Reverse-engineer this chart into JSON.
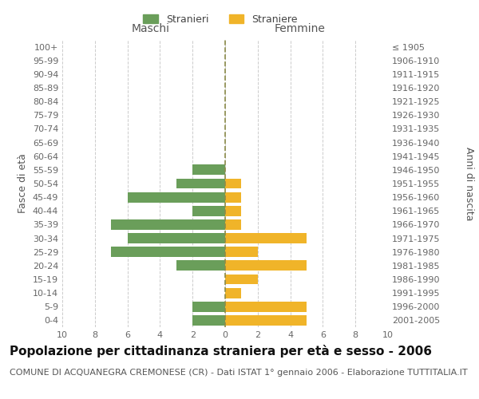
{
  "age_groups": [
    "0-4",
    "5-9",
    "10-14",
    "15-19",
    "20-24",
    "25-29",
    "30-34",
    "35-39",
    "40-44",
    "45-49",
    "50-54",
    "55-59",
    "60-64",
    "65-69",
    "70-74",
    "75-79",
    "80-84",
    "85-89",
    "90-94",
    "95-99",
    "100+"
  ],
  "birth_years": [
    "2001-2005",
    "1996-2000",
    "1991-1995",
    "1986-1990",
    "1981-1985",
    "1976-1980",
    "1971-1975",
    "1966-1970",
    "1961-1965",
    "1956-1960",
    "1951-1955",
    "1946-1950",
    "1941-1945",
    "1936-1940",
    "1931-1935",
    "1926-1930",
    "1921-1925",
    "1916-1920",
    "1911-1915",
    "1906-1910",
    "≤ 1905"
  ],
  "maschi": [
    2,
    2,
    0,
    0,
    3,
    7,
    6,
    7,
    2,
    6,
    3,
    2,
    0,
    0,
    0,
    0,
    0,
    0,
    0,
    0,
    0
  ],
  "femmine": [
    5,
    5,
    1,
    2,
    5,
    2,
    5,
    1,
    1,
    1,
    1,
    0,
    0,
    0,
    0,
    0,
    0,
    0,
    0,
    0,
    0
  ],
  "maschi_color": "#6a9e5a",
  "femmine_color": "#f0b429",
  "center_line_color": "#8b8b4a",
  "background_color": "#ffffff",
  "grid_color": "#cccccc",
  "title": "Popolazione per cittadinanza straniera per età e sesso - 2006",
  "subtitle": "COMUNE DI ACQUANEGRA CREMONESE (CR) - Dati ISTAT 1° gennaio 2006 - Elaborazione TUTTITALIA.IT",
  "xlabel_left": "Maschi",
  "xlabel_right": "Femmine",
  "ylabel_left": "Fasce di età",
  "ylabel_right": "Anni di nascita",
  "legend_maschi": "Stranieri",
  "legend_femmine": "Straniere",
  "xlim": 10,
  "title_fontsize": 11,
  "subtitle_fontsize": 8,
  "axis_label_fontsize": 9,
  "tick_fontsize": 8
}
